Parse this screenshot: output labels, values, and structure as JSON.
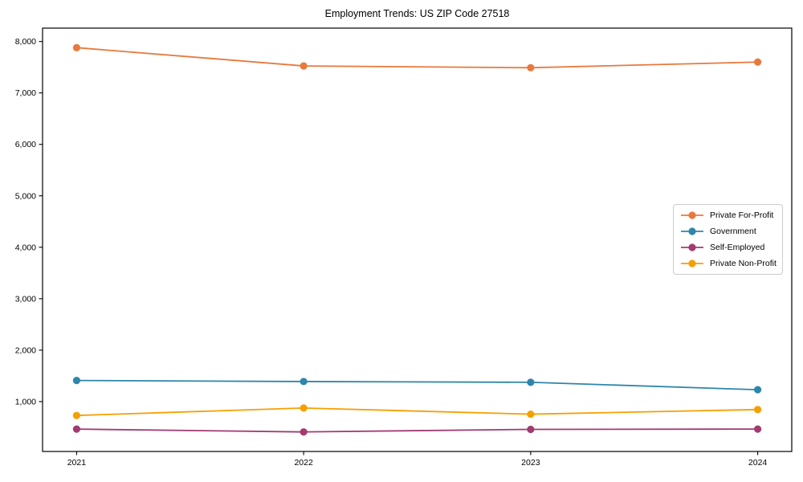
{
  "chart_data": {
    "type": "line",
    "title": "Employment Trends: US ZIP Code 27518",
    "xlabel": "",
    "ylabel": "",
    "x": [
      2021,
      2022,
      2023,
      2024
    ],
    "x_tick_labels": [
      "2021",
      "2022",
      "2023",
      "2024"
    ],
    "series": [
      {
        "name": "Private For-Profit",
        "color": "#E8793D",
        "values": [
          7880,
          7525,
          7490,
          7600
        ]
      },
      {
        "name": "Government",
        "color": "#2E86AB",
        "values": [
          1410,
          1390,
          1375,
          1230
        ]
      },
      {
        "name": "Self-Employed",
        "color": "#A23B72",
        "values": [
          465,
          410,
          460,
          465
        ]
      },
      {
        "name": "Private Non-Profit",
        "color": "#F5A002",
        "values": [
          730,
          875,
          755,
          845
        ]
      }
    ],
    "yticks": [
      1000,
      2000,
      3000,
      4000,
      5000,
      6000,
      7000,
      8000
    ],
    "ytick_labels": [
      "1,000",
      "2,000",
      "3,000",
      "4,000",
      "5,000",
      "6,000",
      "7,000",
      "8,000"
    ],
    "xlim": [
      2020.85,
      2024.15
    ],
    "ylim": [
      30,
      8260
    ],
    "grid": false,
    "legend_position": "center-right",
    "marker": "circle",
    "background": "#ffffff",
    "spine_color": "#000000"
  }
}
